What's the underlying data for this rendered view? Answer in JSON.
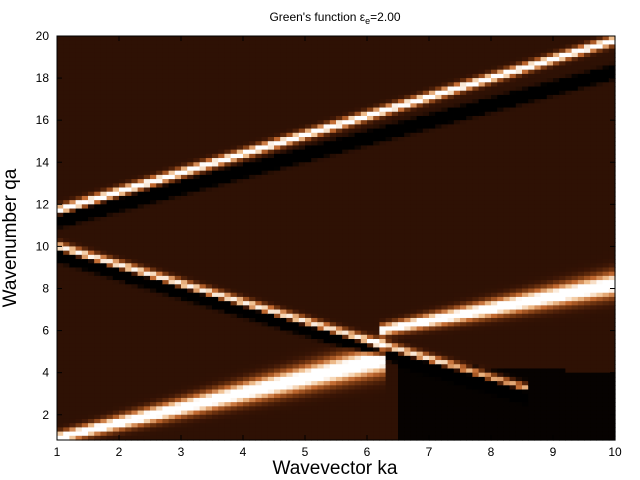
{
  "chart_data": {
    "type": "heatmap",
    "title": "Green's function ε",
    "title_subscript": "e",
    "title_suffix": "=2.00",
    "xlabel": "Wavevector ka",
    "ylabel": "Wavenumber qa",
    "xlim": [
      1,
      10
    ],
    "ylim": [
      0.8,
      20
    ],
    "xticks": [
      1,
      2,
      3,
      4,
      5,
      6,
      7,
      8,
      9,
      10
    ],
    "yticks": [
      2,
      4,
      6,
      8,
      10,
      12,
      14,
      16,
      18,
      20
    ],
    "grid": false,
    "colormap": [
      "#000000",
      "#3a1505",
      "#7a3a12",
      "#c0682f",
      "#f0c090",
      "#ffffff"
    ],
    "ridges": [
      {
        "name": "upper-band",
        "x": [
          1,
          10
        ],
        "y": [
          11.7,
          19.8
        ],
        "intensity": 0.95
      },
      {
        "name": "upper-band-dark",
        "x": [
          1,
          10
        ],
        "y": [
          11.2,
          18.3
        ],
        "intensity": -0.9
      },
      {
        "name": "descending-band",
        "x": [
          1,
          8.5
        ],
        "y": [
          10.0,
          3.3
        ],
        "intensity": 0.85
      },
      {
        "name": "descending-band-dark",
        "x": [
          1,
          8.5
        ],
        "y": [
          9.6,
          3.0
        ],
        "intensity": -0.8
      },
      {
        "name": "lower-band",
        "x": [
          1,
          6.2
        ],
        "y": [
          0.9,
          4.6
        ],
        "intensity": 1.0
      },
      {
        "name": "lower-band-upper",
        "x": [
          6.2,
          10
        ],
        "y": [
          6.0,
          8.2
        ],
        "intensity": 1.0
      }
    ]
  }
}
